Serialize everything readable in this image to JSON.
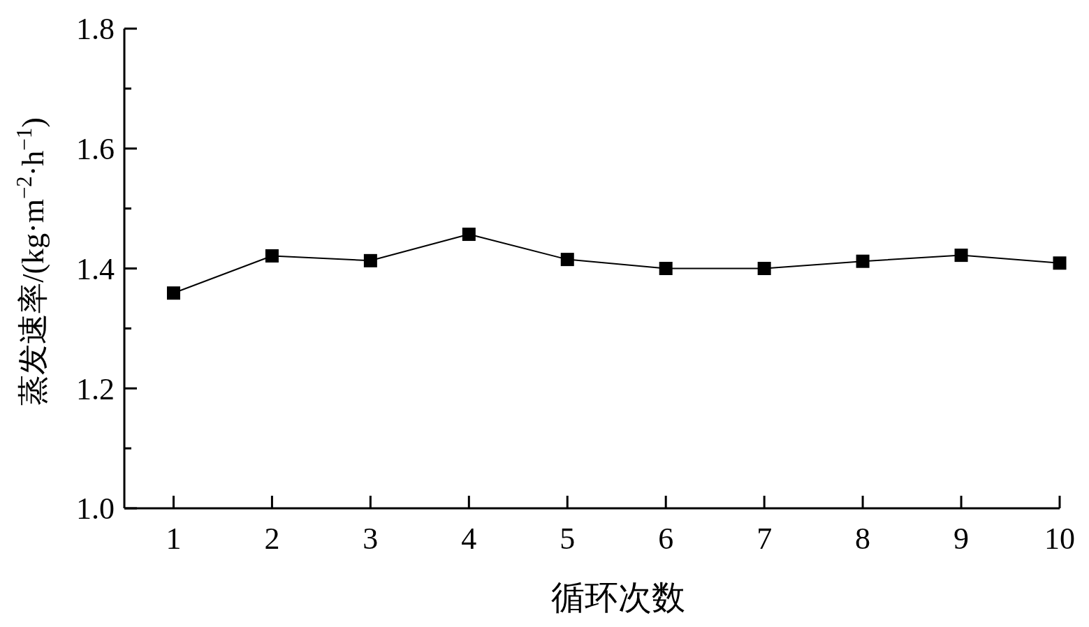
{
  "chart_data": {
    "type": "line",
    "xlabel": "循环次数",
    "ylabel": "蒸发速率/(kg·m$^{−2}$·h$^{−1}$)",
    "x": [
      1,
      2,
      3,
      4,
      5,
      6,
      7,
      8,
      9,
      10
    ],
    "series": [
      {
        "color": "#000000",
        "values": [
          1.359,
          1.421,
          1.413,
          1.457,
          1.415,
          1.4,
          1.4,
          1.412,
          1.422,
          1.409
        ]
      }
    ],
    "xlim": [
      0.5,
      10
    ],
    "xticks": [
      1,
      2,
      3,
      4,
      5,
      6,
      7,
      8,
      9,
      10
    ],
    "ylim": [
      1.0,
      1.8
    ],
    "yticks": [
      {
        "value": 1.0,
        "label": "1.0"
      },
      {
        "value": 1.1,
        "label": null
      },
      {
        "value": 1.2,
        "label": "1.2"
      },
      {
        "value": 1.3,
        "label": null
      },
      {
        "value": 1.4,
        "label": "1.4"
      },
      {
        "value": 1.5,
        "label": null
      },
      {
        "value": 1.6,
        "label": "1.6"
      },
      {
        "value": 1.7,
        "label": null
      },
      {
        "value": 1.8,
        "label": "1.8"
      }
    ],
    "grid": false,
    "marker": "square",
    "line_style": "solid"
  }
}
